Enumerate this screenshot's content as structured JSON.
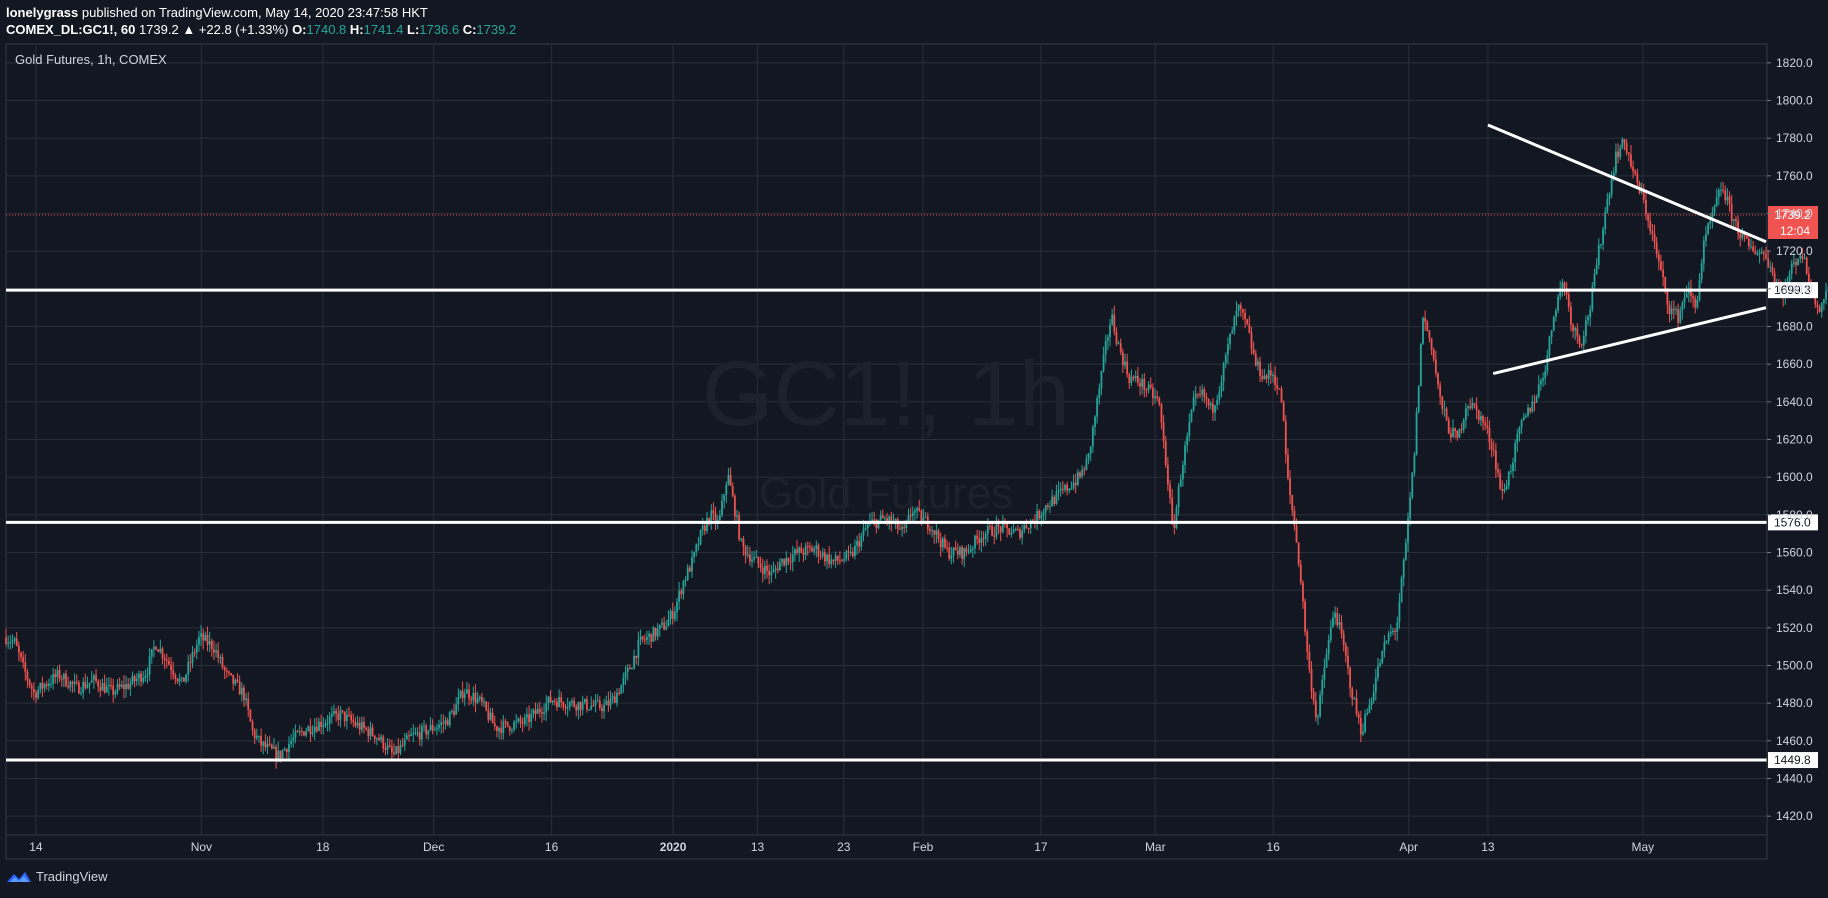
{
  "header": {
    "author": "lonelygrass",
    "published": "published on TradingView.com, May 14, 2020 23:47:58 HKT",
    "symbol": "COMEX_DL:GC1!, 60",
    "last": "1739.2",
    "change": "▲ +22.8 (+1.33%)",
    "o_label": "O:",
    "o_value": "1740.8",
    "h_label": "H:",
    "h_value": "1741.4",
    "l_label": "L:",
    "l_value": "1736.6",
    "c_label": "C:",
    "c_value": "1739.2"
  },
  "footer": {
    "brand": "TradingView"
  },
  "colors": {
    "background": "#131722",
    "grid": "#2a2e39",
    "up": "#26a69a",
    "down": "#ef5350",
    "text": "#d1d4dc",
    "drawing": "#ffffff",
    "price_marker": "#f05350"
  },
  "chart_data": {
    "type": "candlestick",
    "title": "Gold Futures, 1h, COMEX",
    "watermark_symbol": "GC1!, 1h",
    "watermark_name": "Gold Futures",
    "ylim": [
      1410,
      1830
    ],
    "y_ticks": [
      "1420.0",
      "1440.0",
      "1460.0",
      "1480.0",
      "1500.0",
      "1520.0",
      "1540.0",
      "1560.0",
      "1580.0",
      "1600.0",
      "1620.0",
      "1640.0",
      "1660.0",
      "1680.0",
      "1700.0",
      "1720.0",
      "1740.0",
      "1760.0",
      "1780.0",
      "1800.0",
      "1820.0"
    ],
    "x_ticks": [
      {
        "label": "14",
        "t": 0.017
      },
      {
        "label": "Nov",
        "t": 0.111
      },
      {
        "label": "18",
        "t": 0.18
      },
      {
        "label": "Dec",
        "t": 0.243
      },
      {
        "label": "16",
        "t": 0.31
      },
      {
        "label": "2020",
        "t": 0.379
      },
      {
        "label": "13",
        "t": 0.427
      },
      {
        "label": "23",
        "t": 0.476
      },
      {
        "label": "Feb",
        "t": 0.521
      },
      {
        "label": "17",
        "t": 0.588
      },
      {
        "label": "Mar",
        "t": 0.653
      },
      {
        "label": "16",
        "t": 0.72
      },
      {
        "label": "Apr",
        "t": 0.797
      },
      {
        "label": "13",
        "t": 0.842
      },
      {
        "label": "May",
        "t": 0.93
      }
    ],
    "price_path": [
      [
        0.0,
        1515
      ],
      [
        0.005,
        1512
      ],
      [
        0.01,
        1498
      ],
      [
        0.016,
        1485
      ],
      [
        0.022,
        1490
      ],
      [
        0.03,
        1495
      ],
      [
        0.04,
        1488
      ],
      [
        0.05,
        1492
      ],
      [
        0.06,
        1486
      ],
      [
        0.07,
        1490
      ],
      [
        0.08,
        1497
      ],
      [
        0.085,
        1512
      ],
      [
        0.09,
        1505
      ],
      [
        0.1,
        1490
      ],
      [
        0.11,
        1515
      ],
      [
        0.118,
        1510
      ],
      [
        0.125,
        1495
      ],
      [
        0.13,
        1490
      ],
      [
        0.135,
        1485
      ],
      [
        0.14,
        1465
      ],
      [
        0.145,
        1458
      ],
      [
        0.155,
        1452
      ],
      [
        0.162,
        1460
      ],
      [
        0.17,
        1466
      ],
      [
        0.18,
        1470
      ],
      [
        0.19,
        1474
      ],
      [
        0.2,
        1468
      ],
      [
        0.21,
        1463
      ],
      [
        0.215,
        1458
      ],
      [
        0.22,
        1452
      ],
      [
        0.23,
        1462
      ],
      [
        0.24,
        1466
      ],
      [
        0.25,
        1470
      ],
      [
        0.255,
        1477
      ],
      [
        0.26,
        1487
      ],
      [
        0.265,
        1484
      ],
      [
        0.27,
        1480
      ],
      [
        0.278,
        1467
      ],
      [
        0.285,
        1468
      ],
      [
        0.295,
        1470
      ],
      [
        0.3,
        1474
      ],
      [
        0.31,
        1482
      ],
      [
        0.32,
        1480
      ],
      [
        0.33,
        1479
      ],
      [
        0.34,
        1478
      ],
      [
        0.345,
        1482
      ],
      [
        0.35,
        1490
      ],
      [
        0.355,
        1500
      ],
      [
        0.36,
        1512
      ],
      [
        0.365,
        1515
      ],
      [
        0.37,
        1518
      ],
      [
        0.375,
        1522
      ],
      [
        0.38,
        1530
      ],
      [
        0.385,
        1545
      ],
      [
        0.39,
        1555
      ],
      [
        0.395,
        1570
      ],
      [
        0.4,
        1580
      ],
      [
        0.405,
        1575
      ],
      [
        0.41,
        1602
      ],
      [
        0.413,
        1588
      ],
      [
        0.418,
        1563
      ],
      [
        0.425,
        1556
      ],
      [
        0.43,
        1552
      ],
      [
        0.435,
        1548
      ],
      [
        0.44,
        1555
      ],
      [
        0.45,
        1560
      ],
      [
        0.46,
        1562
      ],
      [
        0.465,
        1558
      ],
      [
        0.47,
        1555
      ],
      [
        0.48,
        1558
      ],
      [
        0.49,
        1575
      ],
      [
        0.5,
        1578
      ],
      [
        0.505,
        1575
      ],
      [
        0.51,
        1570
      ],
      [
        0.515,
        1583
      ],
      [
        0.52,
        1578
      ],
      [
        0.525,
        1575
      ],
      [
        0.535,
        1560
      ],
      [
        0.545,
        1560
      ],
      [
        0.555,
        1570
      ],
      [
        0.565,
        1573
      ],
      [
        0.575,
        1570
      ],
      [
        0.58,
        1575
      ],
      [
        0.585,
        1578
      ],
      [
        0.59,
        1584
      ],
      [
        0.6,
        1592
      ],
      [
        0.61,
        1600
      ],
      [
        0.615,
        1610
      ],
      [
        0.62,
        1640
      ],
      [
        0.625,
        1670
      ],
      [
        0.628,
        1686
      ],
      [
        0.632,
        1670
      ],
      [
        0.638,
        1653
      ],
      [
        0.645,
        1650
      ],
      [
        0.65,
        1645
      ],
      [
        0.655,
        1640
      ],
      [
        0.66,
        1600
      ],
      [
        0.663,
        1570
      ],
      [
        0.668,
        1605
      ],
      [
        0.675,
        1640
      ],
      [
        0.68,
        1644
      ],
      [
        0.685,
        1635
      ],
      [
        0.69,
        1650
      ],
      [
        0.695,
        1672
      ],
      [
        0.7,
        1690
      ],
      [
        0.705,
        1680
      ],
      [
        0.71,
        1660
      ],
      [
        0.715,
        1653
      ],
      [
        0.72,
        1655
      ],
      [
        0.725,
        1640
      ],
      [
        0.728,
        1600
      ],
      [
        0.732,
        1575
      ],
      [
        0.735,
        1552
      ],
      [
        0.74,
        1500
      ],
      [
        0.745,
        1470
      ],
      [
        0.75,
        1505
      ],
      [
        0.755,
        1530
      ],
      [
        0.76,
        1510
      ],
      [
        0.765,
        1484
      ],
      [
        0.77,
        1465
      ],
      [
        0.775,
        1480
      ],
      [
        0.78,
        1500
      ],
      [
        0.785,
        1515
      ],
      [
        0.79,
        1520
      ],
      [
        0.795,
        1560
      ],
      [
        0.8,
        1610
      ],
      [
        0.805,
        1686
      ],
      [
        0.81,
        1670
      ],
      [
        0.815,
        1640
      ],
      [
        0.82,
        1625
      ],
      [
        0.825,
        1620
      ],
      [
        0.83,
        1640
      ],
      [
        0.835,
        1636
      ],
      [
        0.84,
        1628
      ],
      [
        0.845,
        1615
      ],
      [
        0.848,
        1600
      ],
      [
        0.85,
        1590
      ],
      [
        0.855,
        1605
      ],
      [
        0.86,
        1625
      ],
      [
        0.865,
        1635
      ],
      [
        0.87,
        1645
      ],
      [
        0.875,
        1660
      ],
      [
        0.88,
        1690
      ],
      [
        0.885,
        1705
      ],
      [
        0.89,
        1680
      ],
      [
        0.895,
        1672
      ],
      [
        0.9,
        1690
      ],
      [
        0.905,
        1720
      ],
      [
        0.91,
        1748
      ],
      [
        0.915,
        1772
      ],
      [
        0.92,
        1778
      ],
      [
        0.925,
        1760
      ],
      [
        0.93,
        1748
      ],
      [
        0.935,
        1730
      ],
      [
        0.94,
        1710
      ],
      [
        0.945,
        1690
      ],
      [
        0.95,
        1685
      ],
      [
        0.955,
        1700
      ],
      [
        0.96,
        1690
      ],
      [
        0.965,
        1725
      ],
      [
        0.97,
        1740
      ],
      [
        0.975,
        1755
      ],
      [
        0.98,
        1740
      ],
      [
        0.985,
        1730
      ],
      [
        0.99,
        1722
      ],
      [
        0.995,
        1720
      ],
      [
        1.0,
        1718
      ],
      [
        1.005,
        1705
      ],
      [
        1.01,
        1698
      ],
      [
        1.015,
        1712
      ],
      [
        1.02,
        1720
      ],
      [
        1.025,
        1702
      ],
      [
        1.03,
        1690
      ],
      [
        1.035,
        1700
      ],
      [
        1.04,
        1715
      ],
      [
        1.045,
        1700
      ],
      [
        1.05,
        1712
      ],
      [
        1.055,
        1720
      ],
      [
        1.06,
        1725
      ],
      [
        1.065,
        1710
      ],
      [
        1.07,
        1700
      ],
      [
        1.075,
        1705
      ],
      [
        1.08,
        1715
      ],
      [
        1.085,
        1725
      ],
      [
        1.09,
        1738
      ],
      [
        1.095,
        1739
      ]
    ],
    "horizontal_levels": [
      {
        "value": 1699.3,
        "label": "1699.3"
      },
      {
        "value": 1576.0,
        "label": "1576.0"
      },
      {
        "value": 1449.8,
        "label": "1449.8"
      }
    ],
    "trend_lines": [
      {
        "name": "upper",
        "t1": 0.842,
        "p1": 1787,
        "t2": 1.0,
        "p2": 1725
      },
      {
        "name": "lower",
        "t1": 0.845,
        "p1": 1655,
        "t2": 1.0,
        "p2": 1690
      }
    ],
    "last_price": {
      "value": 1739.2,
      "label": "1739.2",
      "countdown": "12:04"
    }
  }
}
